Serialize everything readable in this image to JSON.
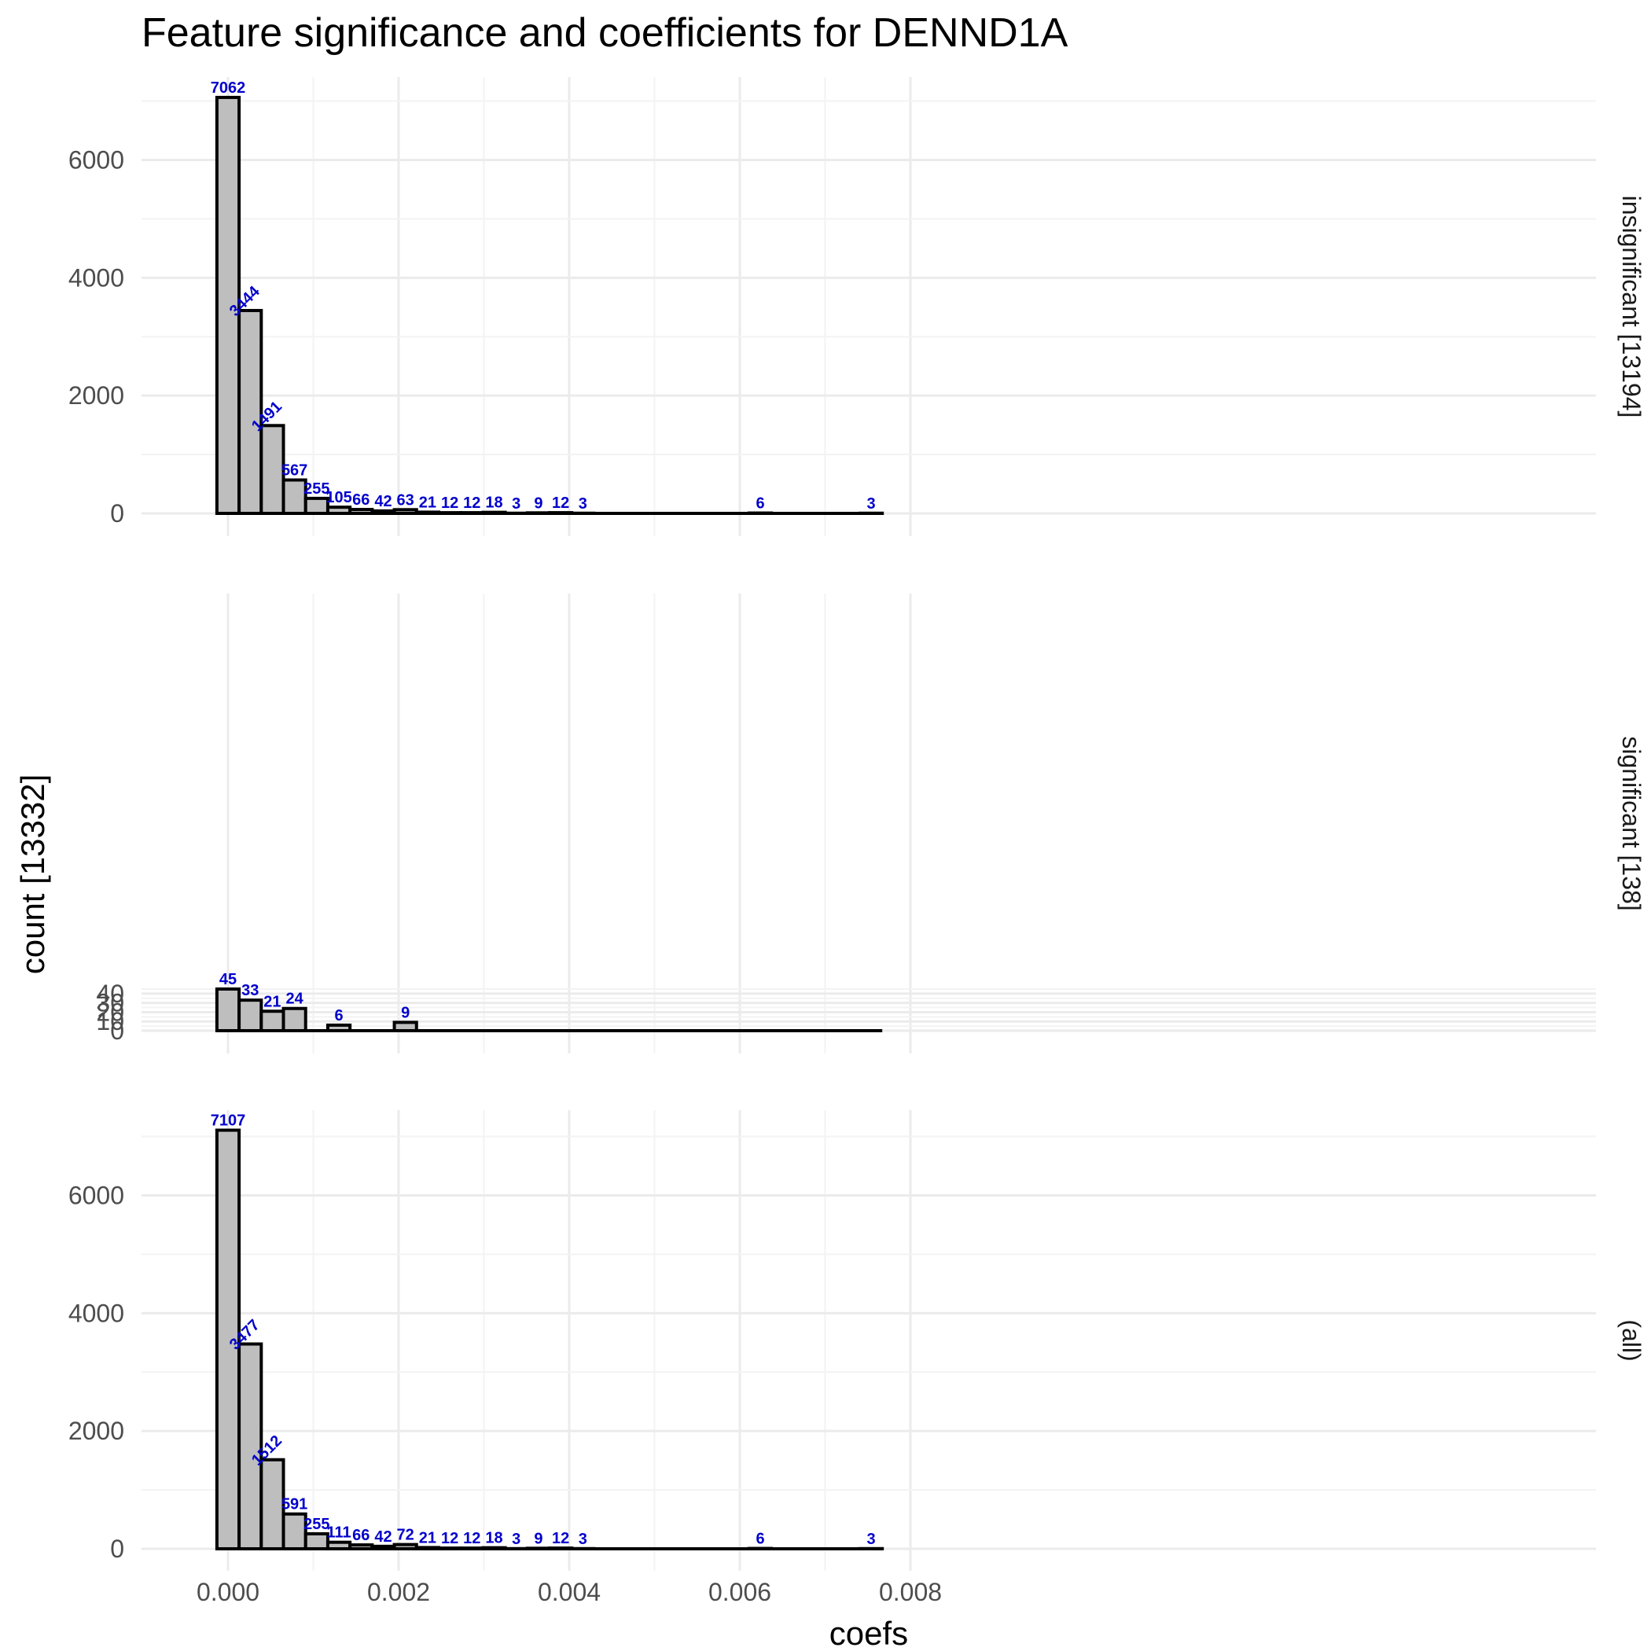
{
  "chart_data": {
    "type": "bar",
    "subtype": "histogram-faceted",
    "title": "Feature significance and coefficients for DENND1A",
    "xlabel": "coefs",
    "ylabel": "count [13332]",
    "x_ticks": [
      "0.000",
      "0.002",
      "0.004",
      "0.006",
      "0.008"
    ],
    "xlim": [
      -0.001,
      0.008
    ],
    "bin_width": 0.00026,
    "bin_centers": [
      0.0,
      0.00026,
      0.00052,
      0.00078,
      0.00104,
      0.0013,
      0.00156,
      0.00182,
      0.00208,
      0.00234,
      0.0026,
      0.00286,
      0.00312,
      0.00338,
      0.00364,
      0.0039,
      0.00416,
      0.00442,
      0.00468,
      0.00494,
      0.0052,
      0.00546,
      0.00572,
      0.00598,
      0.00624,
      0.0065,
      0.00676,
      0.00702,
      0.00728,
      0.00754
    ],
    "bar_fill": "#bebebe",
    "label_color": "#0000cc",
    "grid": true,
    "panels": [
      {
        "strip": "insignificant [13194]",
        "ylim": [
          0,
          7500
        ],
        "y_ticks": [
          "0",
          "2000",
          "4000",
          "6000"
        ],
        "y_tick_values": [
          0,
          2000,
          4000,
          6000
        ],
        "values": [
          7062,
          3444,
          1491,
          567,
          255,
          105,
          66,
          42,
          63,
          21,
          12,
          12,
          18,
          3,
          9,
          12,
          3,
          0,
          0,
          0,
          0,
          0,
          0,
          0,
          6,
          0,
          0,
          0,
          0,
          3
        ],
        "labels": [
          "7062",
          "3444",
          "1491",
          "567",
          "255",
          "105",
          "66",
          "42",
          "63",
          "21",
          "12",
          "12",
          "18",
          "3",
          "9",
          "12",
          "3",
          "",
          "",
          "",
          "",
          "",
          "",
          "",
          "6",
          "",
          "",
          "",
          "",
          "3"
        ]
      },
      {
        "strip": "significant [138]",
        "ylim": [
          0,
          47
        ],
        "y_ticks": [
          "0",
          "10",
          "20",
          "30",
          "40"
        ],
        "y_tick_values": [
          0,
          10,
          20,
          30,
          40
        ],
        "values": [
          45,
          33,
          21,
          24,
          0,
          6,
          0,
          0,
          9,
          0,
          0,
          0,
          0,
          0,
          0,
          0,
          0,
          0,
          0,
          0,
          0,
          0,
          0,
          0,
          0,
          0,
          0,
          0,
          0,
          0
        ],
        "labels": [
          "45",
          "33",
          "21",
          "24",
          "",
          "6",
          "",
          "",
          "9",
          "",
          "",
          "",
          "",
          "",
          "",
          "",
          "",
          "",
          "",
          "",
          "",
          "",
          "",
          "",
          "",
          "",
          "",
          "",
          "",
          ""
        ]
      },
      {
        "strip": "(all)",
        "ylim": [
          0,
          7500
        ],
        "y_ticks": [
          "0",
          "2000",
          "4000",
          "6000"
        ],
        "y_tick_values": [
          0,
          2000,
          4000,
          6000
        ],
        "values": [
          7107,
          3477,
          1512,
          591,
          255,
          111,
          66,
          42,
          72,
          21,
          12,
          12,
          18,
          3,
          9,
          12,
          3,
          0,
          0,
          0,
          0,
          0,
          0,
          0,
          6,
          0,
          0,
          0,
          0,
          3
        ],
        "labels": [
          "7107",
          "3477",
          "1512",
          "591",
          "255",
          "111",
          "66",
          "42",
          "72",
          "21",
          "12",
          "12",
          "18",
          "3",
          "9",
          "12",
          "3",
          "",
          "",
          "",
          "",
          "",
          "",
          "",
          "6",
          "",
          "",
          "",
          "",
          "3"
        ]
      }
    ]
  }
}
